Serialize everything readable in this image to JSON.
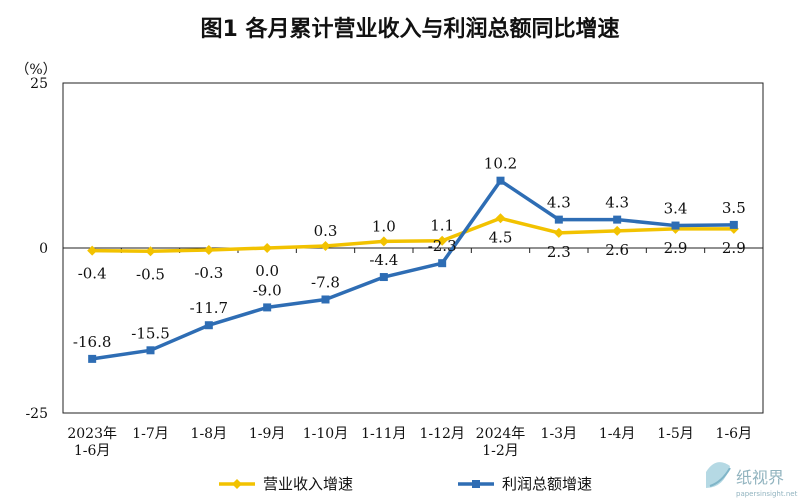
{
  "chart_data": {
    "type": "line",
    "title": "图1  各月累计营业收入与利润总额同比增速",
    "ylabel": "（%）",
    "ylim": [
      -25,
      25
    ],
    "yticks": [
      25,
      0,
      -25
    ],
    "grid": false,
    "legend_position": "bottom",
    "categories": [
      [
        "2023年",
        "1-6月"
      ],
      [
        "1-7月"
      ],
      [
        "1-8月"
      ],
      [
        "1-9月"
      ],
      [
        "1-10月"
      ],
      [
        "1-11月"
      ],
      [
        "1-12月"
      ],
      [
        "2024年",
        "1-2月"
      ],
      [
        "1-3月"
      ],
      [
        "1-4月"
      ],
      [
        "1-5月"
      ],
      [
        "1-6月"
      ]
    ],
    "series": [
      {
        "name": "营业收入增速",
        "color": "#f2c200",
        "marker": "diamond",
        "values": [
          -0.4,
          -0.5,
          -0.3,
          0.0,
          0.3,
          1.0,
          1.1,
          4.5,
          2.3,
          2.6,
          2.9,
          2.9
        ],
        "labels": [
          "-0.4",
          "-0.5",
          "-0.3",
          "0.0",
          "0.3",
          "1.0",
          "1.1",
          "4.5",
          "2.3",
          "2.6",
          "2.9",
          "2.9"
        ]
      },
      {
        "name": "利润总额增速",
        "color": "#2e6db4",
        "marker": "square",
        "values": [
          -16.8,
          -15.5,
          -11.7,
          -9.0,
          -7.8,
          -4.4,
          -2.3,
          10.2,
          4.3,
          4.3,
          3.4,
          3.5
        ],
        "labels": [
          "-16.8",
          "-15.5",
          "-11.7",
          "-9.0",
          "-7.8",
          "-4.4",
          "-2.3",
          "10.2",
          "4.3",
          "4.3",
          "3.4",
          "3.5"
        ]
      }
    ]
  },
  "watermark": {
    "name": "纸视界",
    "url": "papersinsight.net"
  }
}
